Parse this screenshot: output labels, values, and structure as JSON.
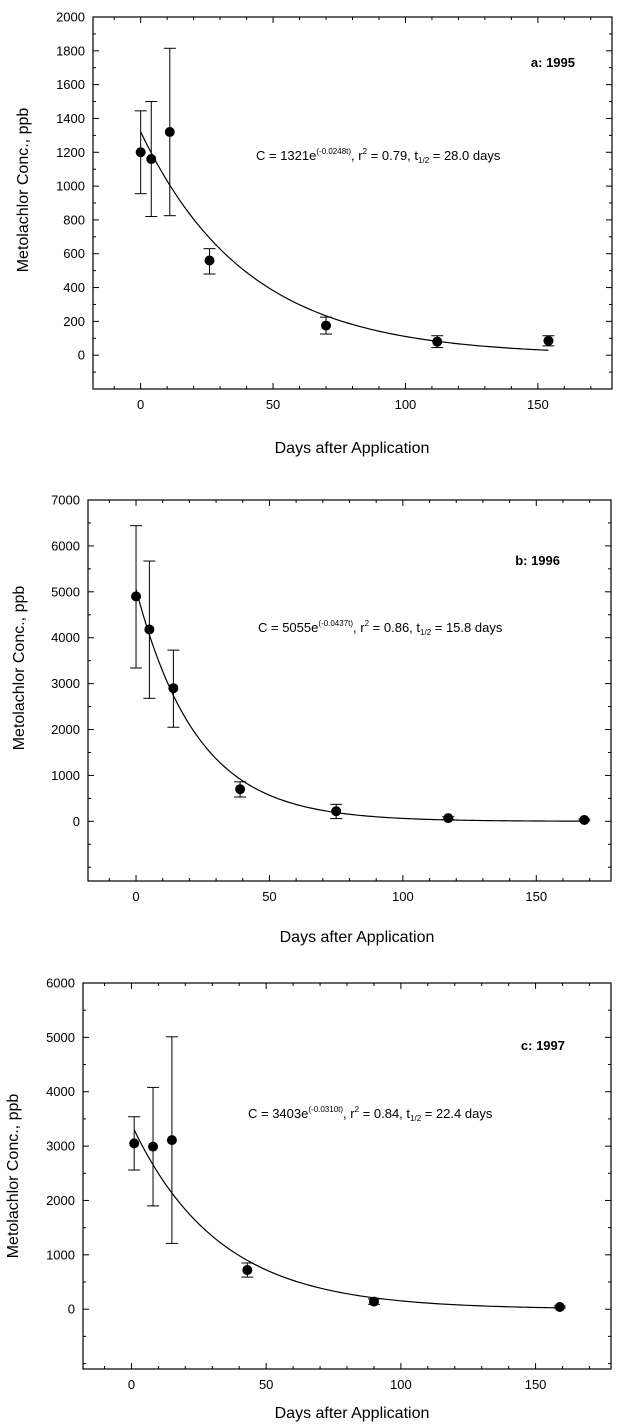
{
  "chart_data": [
    {
      "type": "scatter",
      "panel_label": "a: 1995",
      "equation": {
        "lead": "C = 1321e",
        "exp": "(-0.0248t)",
        "mid": ", r",
        "r2_exp": "2",
        "mid2": " = 0.79, t",
        "sub": "1/2",
        "tail": " = 28.0 days"
      },
      "xlabel": "Days after Application",
      "ylabel": "Metolachlor Conc., ppb",
      "xlim": [
        -18,
        178
      ],
      "ylim": [
        -200,
        2000
      ],
      "xticks": [
        0,
        50,
        100,
        150
      ],
      "yticks": [
        0,
        200,
        400,
        600,
        800,
        1000,
        1200,
        1400,
        1600,
        1800,
        2000
      ],
      "fit": {
        "a": 1321,
        "k": 0.0248,
        "x0": 0,
        "x1": 154
      },
      "points": [
        {
          "x": 0,
          "y": 1200,
          "lo": 955,
          "hi": 1445
        },
        {
          "x": 4,
          "y": 1160,
          "lo": 820,
          "hi": 1500
        },
        {
          "x": 11,
          "y": 1320,
          "lo": 825,
          "hi": 1815
        },
        {
          "x": 26,
          "y": 560,
          "lo": 480,
          "hi": 630
        },
        {
          "x": 70,
          "y": 175,
          "lo": 125,
          "hi": 225
        },
        {
          "x": 112,
          "y": 80,
          "lo": 45,
          "hi": 115
        },
        {
          "x": 154,
          "y": 85,
          "lo": 55,
          "hi": 115
        }
      ]
    },
    {
      "type": "scatter",
      "panel_label": "b: 1996",
      "equation": {
        "lead": "C = 5055e",
        "exp": "(-0.0437t)",
        "mid": ", r",
        "r2_exp": "2",
        "mid2": " = 0.86, t",
        "sub": "1/2",
        "tail": " = 15.8 days"
      },
      "xlabel": "Days after Application",
      "ylabel": "Metolachlor Conc., ppb",
      "xlim": [
        -18,
        178
      ],
      "ylim": [
        -1300,
        7000
      ],
      "xticks": [
        0,
        50,
        100,
        150
      ],
      "yticks": [
        0,
        1000,
        2000,
        3000,
        4000,
        5000,
        6000,
        7000
      ],
      "fit": {
        "a": 5055,
        "k": 0.0437,
        "x0": 0,
        "x1": 168
      },
      "points": [
        {
          "x": 0,
          "y": 4900,
          "lo": 3340,
          "hi": 6440
        },
        {
          "x": 5,
          "y": 4180,
          "lo": 2680,
          "hi": 5670
        },
        {
          "x": 14,
          "y": 2900,
          "lo": 2050,
          "hi": 3730
        },
        {
          "x": 39,
          "y": 700,
          "lo": 530,
          "hi": 860
        },
        {
          "x": 75,
          "y": 220,
          "lo": 60,
          "hi": 370
        },
        {
          "x": 117,
          "y": 70,
          "lo": 40,
          "hi": 100
        },
        {
          "x": 168,
          "y": 30,
          "lo": 10,
          "hi": 50
        }
      ]
    },
    {
      "type": "scatter",
      "panel_label": "c: 1997",
      "equation": {
        "lead": "C = 3403e",
        "exp": "(-0.0310t)",
        "mid": ", r",
        "r2_exp": "2",
        "mid2": " = 0.84, t",
        "sub": "1/2",
        "tail": " = 22.4 days"
      },
      "xlabel": "Days after Application",
      "ylabel": "Metolachlor Conc., ppb",
      "xlim": [
        -18,
        178
      ],
      "ylim": [
        -1100,
        6000
      ],
      "xticks": [
        0,
        50,
        100,
        150
      ],
      "yticks": [
        0,
        1000,
        2000,
        3000,
        4000,
        5000,
        6000
      ],
      "fit": {
        "a": 3403,
        "k": 0.031,
        "x0": 1,
        "x1": 159
      },
      "points": [
        {
          "x": 1,
          "y": 3050,
          "lo": 2560,
          "hi": 3540
        },
        {
          "x": 8,
          "y": 2990,
          "lo": 1900,
          "hi": 4080
        },
        {
          "x": 15,
          "y": 3110,
          "lo": 1210,
          "hi": 5010
        },
        {
          "x": 43,
          "y": 720,
          "lo": 590,
          "hi": 850
        },
        {
          "x": 90,
          "y": 140,
          "lo": 90,
          "hi": 190
        },
        {
          "x": 159,
          "y": 40,
          "lo": 20,
          "hi": 60
        }
      ]
    }
  ]
}
